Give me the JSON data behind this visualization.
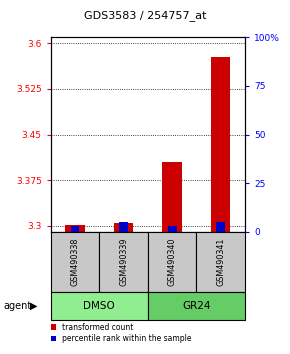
{
  "title": "GDS3583 / 254757_at",
  "samples": [
    "GSM490338",
    "GSM490339",
    "GSM490340",
    "GSM490341"
  ],
  "group_labels": [
    "DMSO",
    "GR24"
  ],
  "group_colors": [
    "#90EE90",
    "#66CC66"
  ],
  "transformed_counts": [
    3.302,
    3.305,
    3.405,
    3.577
  ],
  "percentile_ranks_pct": [
    3,
    5,
    3,
    5
  ],
  "ylim_left": [
    3.29,
    3.61
  ],
  "ylim_right": [
    0,
    100
  ],
  "yticks_left": [
    3.3,
    3.375,
    3.45,
    3.525,
    3.6
  ],
  "ytick_labels_left": [
    "3.3",
    "3.375",
    "3.45",
    "3.525",
    "3.6"
  ],
  "yticks_right": [
    0,
    25,
    50,
    75,
    100
  ],
  "ytick_labels_right": [
    "0",
    "25",
    "50",
    "75",
    "100%"
  ],
  "bar_color_red": "#CC0000",
  "bar_color_blue": "#0000CC",
  "background_color": "#ffffff",
  "sample_box_color": "#C8C8C8",
  "legend_red_label": "transformed count",
  "legend_blue_label": "percentile rank within the sample",
  "agent_label": "agent"
}
